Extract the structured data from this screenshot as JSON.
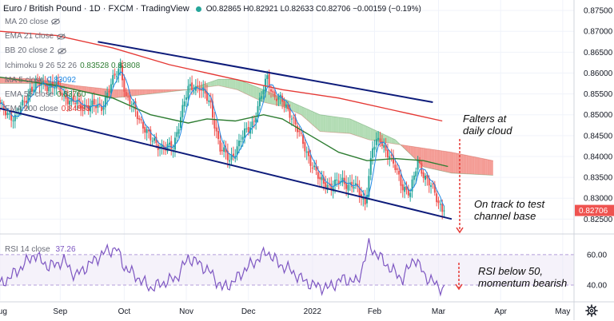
{
  "header": {
    "symbol": "Euro / British Pound · 1D · FXCM · TradingView",
    "ohlc": "O0.82865 H0.82921 L0.82633 C0.82706 −0.00159 (−0.19%)"
  },
  "indicators": [
    {
      "label": "MA 20 close",
      "value": "",
      "color": "#9b9b9b",
      "hidden": true
    },
    {
      "label": "EMA 21 close",
      "value": "",
      "color": "#9b9b9b",
      "hidden": true
    },
    {
      "label": "BB 20 close 2",
      "value": "",
      "color": "#9b9b9b",
      "hidden": true
    },
    {
      "label": "Ichimoku 9 26 52 26",
      "value": "0.83528  0.83808",
      "color": "#2e7d32",
      "hidden": false
    },
    {
      "label": "MA 5 close",
      "value": "0.83092",
      "color": "#1e88e5",
      "hidden": false
    },
    {
      "label": "EMA 55 close",
      "value": "0.83760",
      "color": "#2e7d32",
      "hidden": false
    },
    {
      "label": "EMA 200 close",
      "value": "0.84853",
      "color": "#e53935",
      "hidden": false
    }
  ],
  "annotations": {
    "cloud": [
      "Falters at",
      "daily cloud"
    ],
    "channel": [
      "On track to test",
      "channel base"
    ],
    "rsi": [
      "RSI below 50,",
      "momentum bearish"
    ]
  },
  "rsi_label": "RSI 14 close",
  "rsi_value": "37.26",
  "colors": {
    "bull": "#26a69a",
    "bear": "#ef5350",
    "channel": "#0d1b7a",
    "ema200": "#e53935",
    "ema55": "#2e7d32",
    "ma5": "#1e88e5",
    "cloud_bear": "#f28b82",
    "cloud_bull": "#a5d6a7",
    "rsi": "#7e57c2",
    "arrow": "#e53935",
    "price_tag": "#ef5350"
  },
  "icons": {
    "settings": "gear-icon",
    "hidden": "eye-off-icon"
  },
  "chart_data": {
    "type": "candlestick",
    "price_axis": {
      "ticks": [
        0.875,
        0.87,
        0.865,
        0.86,
        0.855,
        0.85,
        0.845,
        0.84,
        0.835,
        0.83,
        0.825
      ],
      "tick_labels": [
        "0.87500",
        "0.87000",
        "0.86500",
        "0.86000",
        "0.85500",
        "0.85000",
        "0.84500",
        "0.84000",
        "0.83500",
        "0.83000",
        "0.82500"
      ],
      "range": [
        0.822,
        0.8775
      ],
      "last_price": 0.82706,
      "last_price_label": "0.82706"
    },
    "time_axis": {
      "labels": [
        "Aug",
        "Sep",
        "Oct",
        "Nov",
        "Dec",
        "2022",
        "Feb",
        "Mar",
        "Apr",
        "May"
      ],
      "positions": [
        0,
        32,
        66,
        99,
        132,
        166,
        199,
        233,
        266,
        299
      ],
      "range": [
        0,
        305
      ]
    },
    "close_anchors": [
      [
        0,
        0.852
      ],
      [
        8,
        0.849
      ],
      [
        16,
        0.856
      ],
      [
        22,
        0.8575
      ],
      [
        30,
        0.8565
      ],
      [
        38,
        0.853
      ],
      [
        46,
        0.852
      ],
      [
        54,
        0.852
      ],
      [
        60,
        0.858
      ],
      [
        64,
        0.862
      ],
      [
        67,
        0.854
      ],
      [
        72,
        0.851
      ],
      [
        80,
        0.844
      ],
      [
        88,
        0.842
      ],
      [
        92,
        0.842
      ],
      [
        96,
        0.85
      ],
      [
        100,
        0.856
      ],
      [
        106,
        0.857
      ],
      [
        112,
        0.852
      ],
      [
        117,
        0.842
      ],
      [
        122,
        0.839
      ],
      [
        128,
        0.844
      ],
      [
        134,
        0.848
      ],
      [
        138,
        0.853
      ],
      [
        142,
        0.859
      ],
      [
        145,
        0.855
      ],
      [
        150,
        0.853
      ],
      [
        155,
        0.85
      ],
      [
        160,
        0.844
      ],
      [
        165,
        0.839
      ],
      [
        170,
        0.834
      ],
      [
        176,
        0.833
      ],
      [
        182,
        0.834
      ],
      [
        188,
        0.833
      ],
      [
        194,
        0.829
      ],
      [
        198,
        0.842
      ],
      [
        202,
        0.844
      ],
      [
        206,
        0.841
      ],
      [
        210,
        0.837
      ],
      [
        214,
        0.833
      ],
      [
        218,
        0.831
      ],
      [
        222,
        0.839
      ],
      [
        226,
        0.835
      ],
      [
        230,
        0.832
      ],
      [
        233,
        0.829
      ],
      [
        236,
        0.8271
      ]
    ],
    "channel": {
      "upper": [
        [
          52,
          0.8675
        ],
        [
          230,
          0.853
        ]
      ],
      "lower": [
        [
          0,
          0.8515
        ],
        [
          240,
          0.825
        ]
      ]
    },
    "ema200": [
      [
        0,
        0.87
      ],
      [
        30,
        0.869
      ],
      [
        60,
        0.866
      ],
      [
        90,
        0.862
      ],
      [
        120,
        0.859
      ],
      [
        150,
        0.856
      ],
      [
        180,
        0.854
      ],
      [
        210,
        0.851
      ],
      [
        235,
        0.8485
      ]
    ],
    "ema55": [
      [
        0,
        0.859
      ],
      [
        30,
        0.857
      ],
      [
        60,
        0.854
      ],
      [
        80,
        0.85
      ],
      [
        100,
        0.848
      ],
      [
        110,
        0.849
      ],
      [
        125,
        0.8485
      ],
      [
        140,
        0.85
      ],
      [
        150,
        0.849
      ],
      [
        165,
        0.845
      ],
      [
        180,
        0.841
      ],
      [
        195,
        0.839
      ],
      [
        210,
        0.8395
      ],
      [
        225,
        0.839
      ],
      [
        238,
        0.8376
      ]
    ],
    "cloud": {
      "span_a": [
        [
          0,
          0.859
        ],
        [
          20,
          0.8585
        ],
        [
          40,
          0.857
        ],
        [
          60,
          0.856
        ],
        [
          80,
          0.856
        ],
        [
          100,
          0.856
        ],
        [
          116,
          0.857
        ],
        [
          126,
          0.856
        ],
        [
          140,
          0.853
        ],
        [
          150,
          0.852
        ],
        [
          160,
          0.85
        ],
        [
          170,
          0.846
        ],
        [
          186,
          0.8455
        ],
        [
          196,
          0.844
        ],
        [
          210,
          0.843
        ],
        [
          225,
          0.842
        ],
        [
          240,
          0.841
        ],
        [
          262,
          0.839
        ]
      ],
      "span_b": [
        [
          0,
          0.8575
        ],
        [
          20,
          0.8575
        ],
        [
          40,
          0.856
        ],
        [
          60,
          0.854
        ],
        [
          80,
          0.855
        ],
        [
          100,
          0.856
        ],
        [
          116,
          0.8585
        ],
        [
          126,
          0.8585
        ],
        [
          140,
          0.856
        ],
        [
          150,
          0.854
        ],
        [
          160,
          0.852
        ],
        [
          170,
          0.85
        ],
        [
          186,
          0.849
        ],
        [
          196,
          0.847
        ],
        [
          210,
          0.844
        ],
        [
          225,
          0.8375
        ],
        [
          240,
          0.836
        ],
        [
          262,
          0.8355
        ]
      ]
    },
    "rsi": {
      "ticks": [
        60,
        40
      ],
      "tick_labels": [
        "60.00",
        "40.00"
      ],
      "range": [
        30,
        72
      ],
      "anchors": [
        [
          0,
          40
        ],
        [
          10,
          50
        ],
        [
          18,
          60
        ],
        [
          26,
          52
        ],
        [
          34,
          56
        ],
        [
          40,
          46
        ],
        [
          48,
          54
        ],
        [
          56,
          62
        ],
        [
          62,
          64
        ],
        [
          66,
          52
        ],
        [
          72,
          46
        ],
        [
          80,
          38
        ],
        [
          88,
          42
        ],
        [
          94,
          45
        ],
        [
          100,
          58
        ],
        [
          106,
          54
        ],
        [
          112,
          48
        ],
        [
          118,
          38
        ],
        [
          124,
          42
        ],
        [
          130,
          50
        ],
        [
          136,
          56
        ],
        [
          142,
          62
        ],
        [
          148,
          54
        ],
        [
          154,
          50
        ],
        [
          160,
          44
        ],
        [
          166,
          40
        ],
        [
          174,
          38
        ],
        [
          182,
          44
        ],
        [
          190,
          42
        ],
        [
          196,
          66
        ],
        [
          202,
          58
        ],
        [
          208,
          50
        ],
        [
          214,
          44
        ],
        [
          220,
          58
        ],
        [
          226,
          46
        ],
        [
          232,
          40
        ],
        [
          236,
          37
        ]
      ]
    }
  }
}
